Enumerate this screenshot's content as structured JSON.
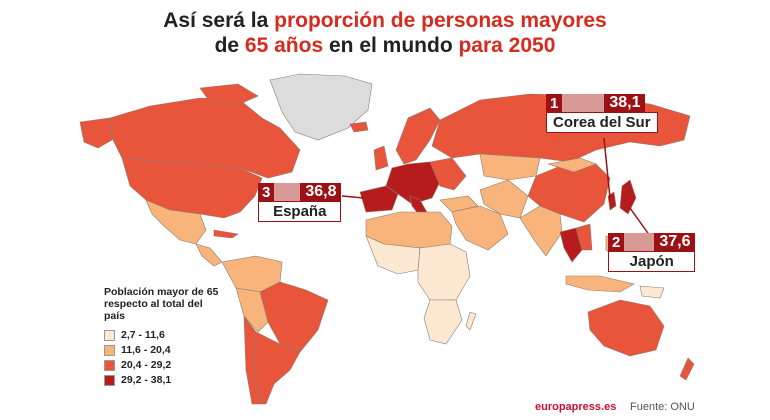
{
  "title": {
    "part1": "Así será la ",
    "highlight1": "proporción de personas mayores",
    "part2": "de ",
    "highlight2": "65 años",
    "part3": " en el mundo ",
    "highlight3": "para 2050"
  },
  "callouts": [
    {
      "rank": "1",
      "value": "38,1",
      "country": "Corea del Sur"
    },
    {
      "rank": "2",
      "value": "37,6",
      "country": "Japón"
    },
    {
      "rank": "3",
      "value": "36,8",
      "country": "España"
    }
  ],
  "legend": {
    "title": "Población mayor de 65 respecto al total del país",
    "items": [
      {
        "label": "2,7 - 11,6",
        "color": "#fde8d2"
      },
      {
        "label": "11,6 - 20,4",
        "color": "#f8b47a"
      },
      {
        "label": "20,4 - 29,2",
        "color": "#e8553a"
      },
      {
        "label": "29,2 - 38,1",
        "color": "#b71c1c"
      }
    ]
  },
  "colors": {
    "no_data": "#dcdcdc",
    "highlight": "#d62b1e",
    "callout": "#9b1116"
  },
  "footer": {
    "brand": "europapress.es",
    "source": "Fuente: ONU"
  }
}
